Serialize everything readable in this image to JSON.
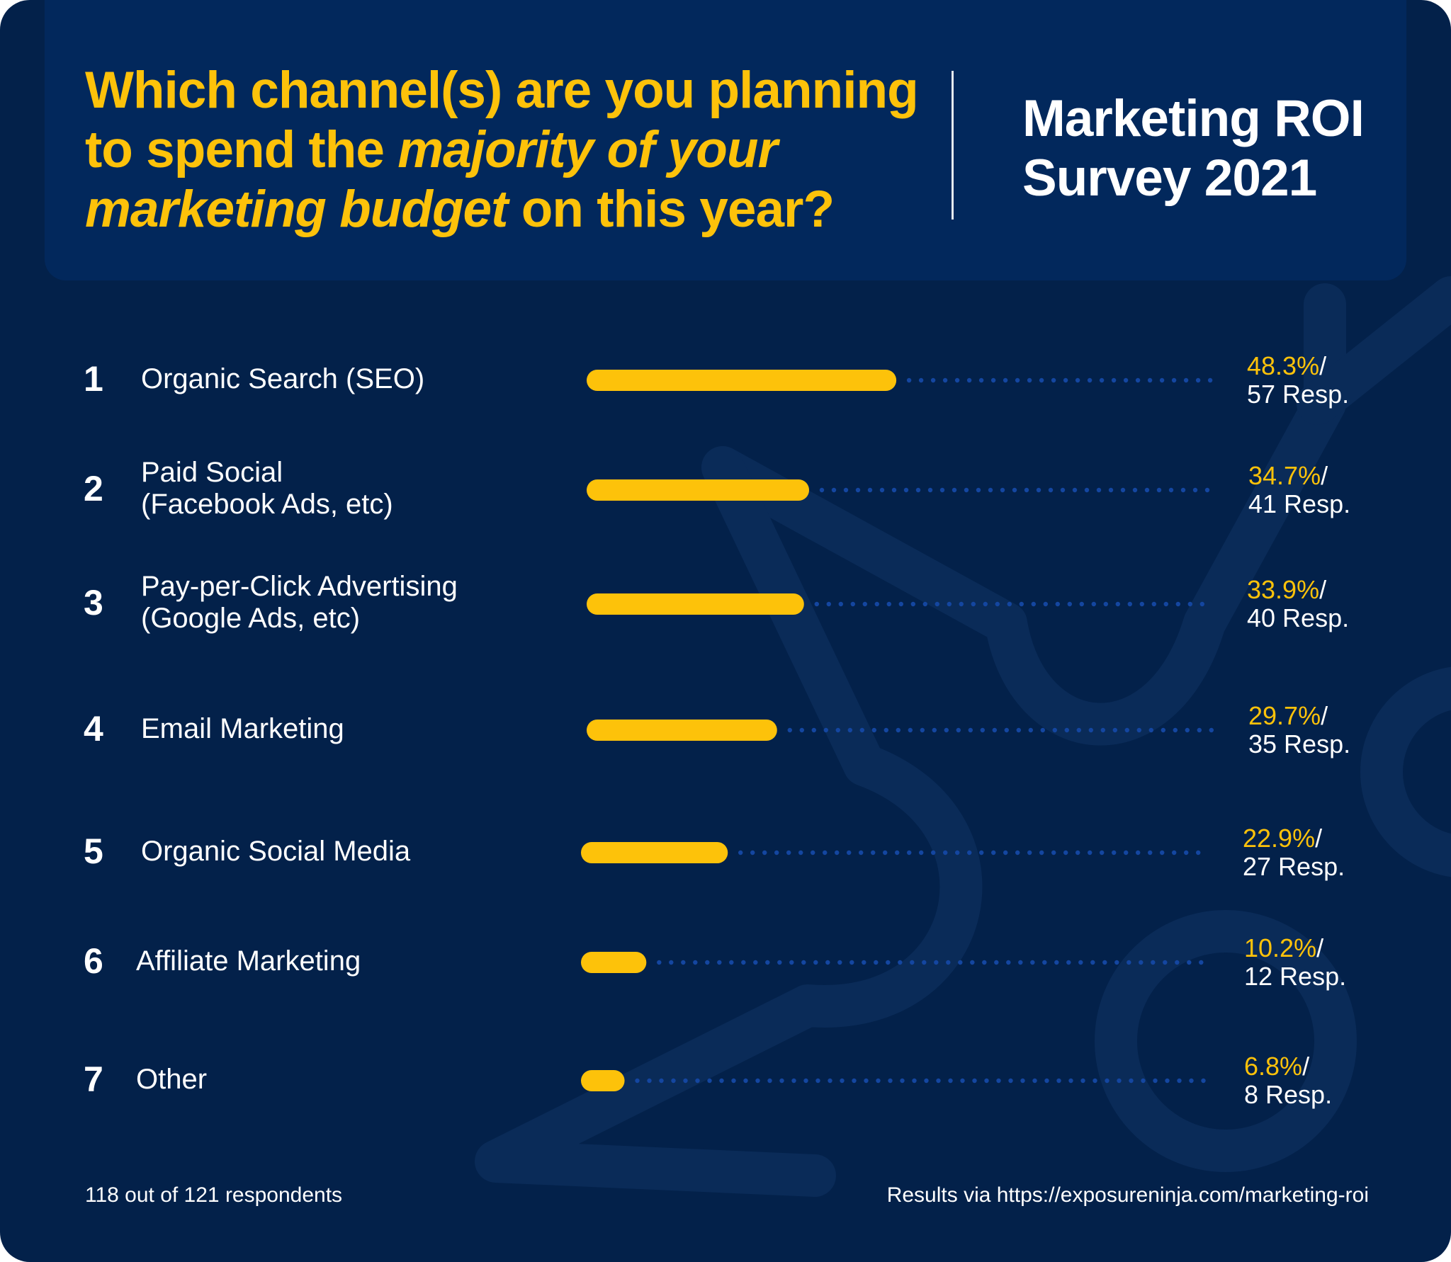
{
  "header": {
    "question_part1": "Which channel(s) are you planning",
    "question_part2_plain": "to spend the ",
    "question_part2_italic": "majority of your",
    "question_part3_italic": "marketing budget",
    "question_part3_plain": " on this year?",
    "survey_title_line1": "Marketing ROI",
    "survey_title_line2": "Survey 2021"
  },
  "chart_data": {
    "type": "bar",
    "orientation": "horizontal",
    "title": "Which channel(s) are you planning to spend the majority of your marketing budget on this year?",
    "xlim": [
      0,
      100
    ],
    "value_unit": "%",
    "grid": false,
    "rows": [
      {
        "rank": "1",
        "label_lines": [
          "Organic Search (SEO)"
        ],
        "value": 48.3,
        "pct_label": "48.3%",
        "resp_label": "57 Resp."
      },
      {
        "rank": "2",
        "label_lines": [
          "Paid Social",
          "(Facebook Ads, etc)"
        ],
        "value": 34.7,
        "pct_label": "34.7%",
        "resp_label": "41 Resp."
      },
      {
        "rank": "3",
        "label_lines": [
          "Pay-per-Click Advertising",
          "(Google Ads, etc)"
        ],
        "value": 33.9,
        "pct_label": "33.9%",
        "resp_label": "40 Resp."
      },
      {
        "rank": "4",
        "label_lines": [
          "Email Marketing"
        ],
        "value": 29.7,
        "pct_label": "29.7%",
        "resp_label": "35 Resp."
      },
      {
        "rank": "5",
        "label_lines": [
          "Organic Social Media"
        ],
        "value": 22.9,
        "pct_label": "22.9%",
        "resp_label": "27 Resp."
      },
      {
        "rank": "6",
        "label_lines": [
          "Affiliate Marketing"
        ],
        "value": 10.2,
        "pct_label": "10.2%",
        "resp_label": "12 Resp."
      },
      {
        "rank": "7",
        "label_lines": [
          "Other"
        ],
        "value": 6.8,
        "pct_label": "6.8%",
        "resp_label": "8 Resp."
      }
    ],
    "separator": "/"
  },
  "footer": {
    "respondents": "118 out of 121 respondents",
    "source": "Results via https://exposureninja.com/marketing-roi"
  },
  "colors": {
    "background": "#03214a",
    "header_bg": "#02285c",
    "accent_yellow": "#fdc20a",
    "dots": "#1446a0",
    "text": "#ffffff"
  }
}
